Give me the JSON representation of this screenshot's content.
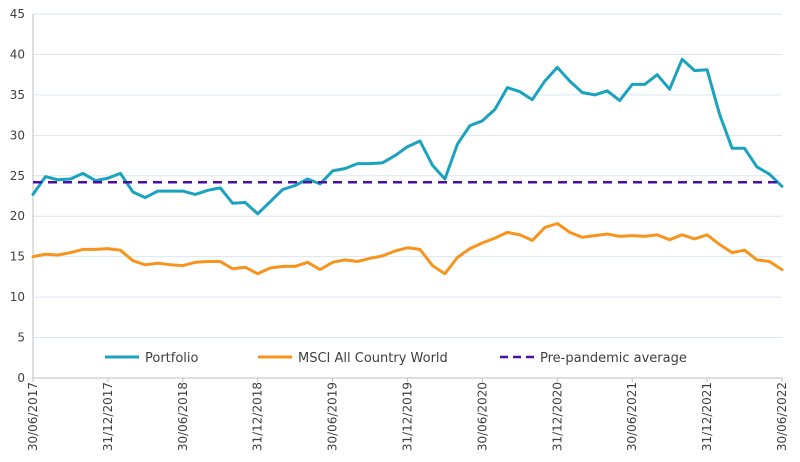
{
  "chart_data": {
    "type": "line",
    "title": "",
    "xlabel": "",
    "ylabel": "",
    "ylim": [
      0,
      45
    ],
    "y_ticks": [
      0,
      5,
      10,
      15,
      20,
      25,
      30,
      35,
      40,
      45
    ],
    "grid": "horizontal",
    "legend_position": "bottom-center-inside",
    "x_tick_labels": [
      "30/06/2017",
      "31/12/2017",
      "30/06/2018",
      "31/12/2018",
      "30/06/2019",
      "31/12/2019",
      "30/06/2020",
      "31/12/2020",
      "30/06/2021",
      "31/12/2021",
      "30/06/2022"
    ],
    "x_count": 61,
    "series": [
      {
        "name": "Portfolio",
        "color": "#1aa3bf",
        "style": "solid",
        "values": [
          22.7,
          24.9,
          24.5,
          24.6,
          25.3,
          24.4,
          24.7,
          25.3,
          23.0,
          22.3,
          23.1,
          23.1,
          23.1,
          22.7,
          23.2,
          23.5,
          21.6,
          21.7,
          20.3,
          21.8,
          23.3,
          23.8,
          24.6,
          24.0,
          25.6,
          25.9,
          26.5,
          26.5,
          26.6,
          27.5,
          28.6,
          29.3,
          26.3,
          24.6,
          28.9,
          31.2,
          31.8,
          33.2,
          35.9,
          35.4,
          34.4,
          36.7,
          38.4,
          36.7,
          35.3,
          35.0,
          35.5,
          34.3,
          36.3,
          36.3,
          37.5,
          35.7,
          39.4,
          38.0,
          38.1,
          32.6,
          28.4,
          28.4,
          26.1,
          25.2,
          23.7
        ]
      },
      {
        "name": "MSCI All Country World",
        "color": "#f7941d",
        "style": "solid",
        "values": [
          15.0,
          15.3,
          15.2,
          15.5,
          15.9,
          15.9,
          16.0,
          15.8,
          14.5,
          14.0,
          14.2,
          14.0,
          13.9,
          14.3,
          14.4,
          14.4,
          13.5,
          13.7,
          12.9,
          13.6,
          13.8,
          13.8,
          14.3,
          13.4,
          14.3,
          14.6,
          14.4,
          14.8,
          15.1,
          15.7,
          16.1,
          15.9,
          13.9,
          12.9,
          14.9,
          16.0,
          16.7,
          17.3,
          18.0,
          17.7,
          17.0,
          18.6,
          19.1,
          18.0,
          17.4,
          17.6,
          17.8,
          17.5,
          17.6,
          17.5,
          17.7,
          17.1,
          17.7,
          17.2,
          17.7,
          16.5,
          15.5,
          15.8,
          14.6,
          14.4,
          13.4
        ]
      },
      {
        "name": "Pre-pandemic average",
        "color": "#4b0fa3",
        "style": "dashed",
        "constant": 24.2
      }
    ]
  }
}
